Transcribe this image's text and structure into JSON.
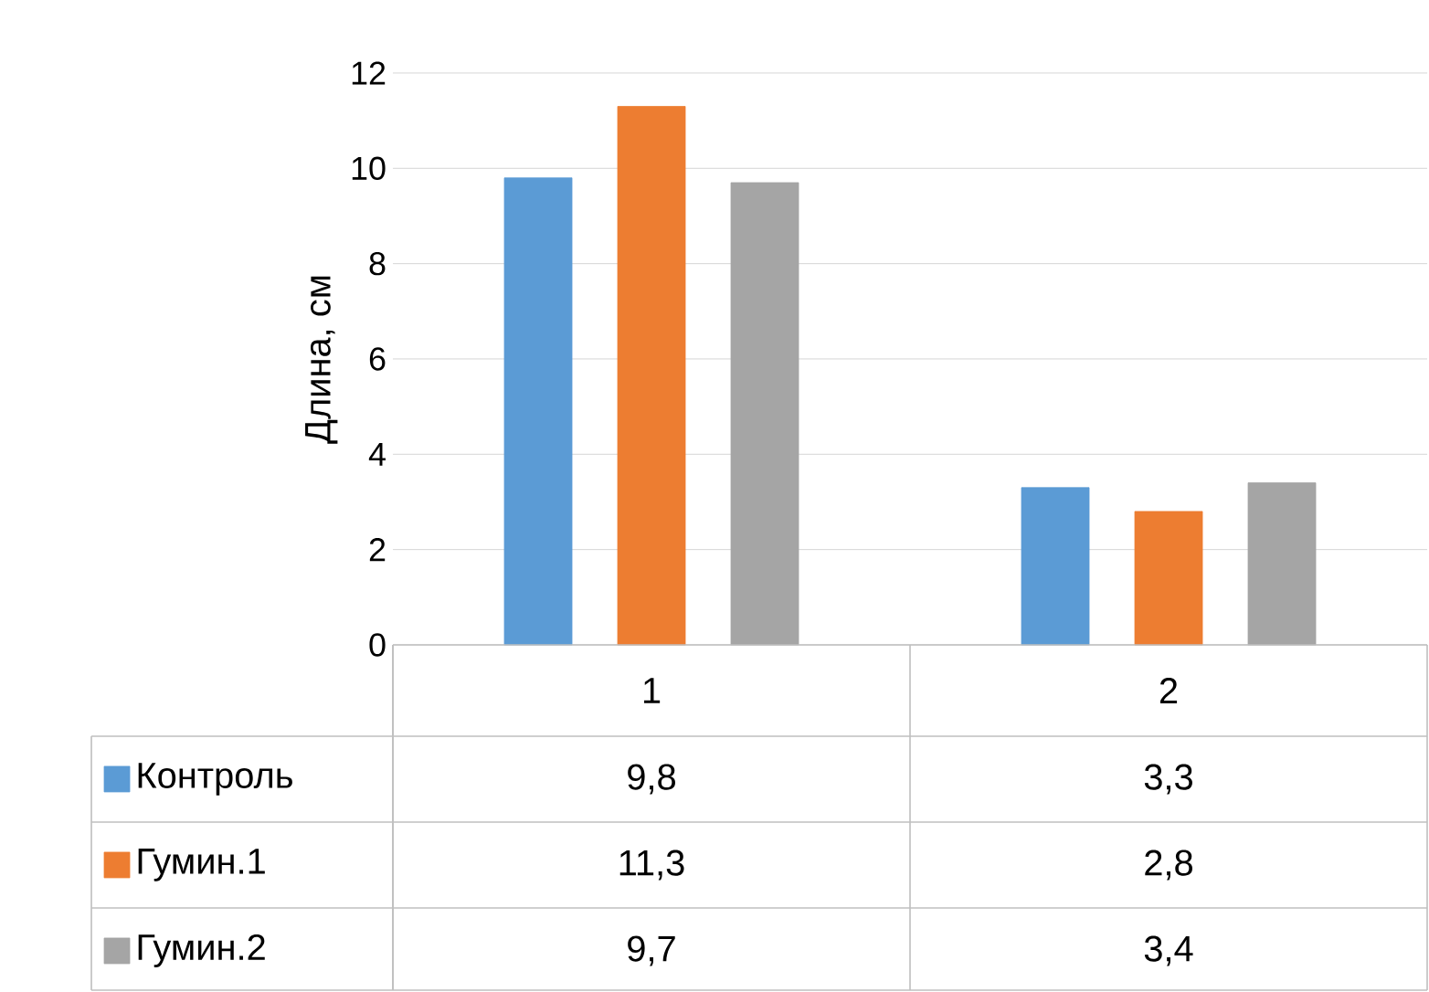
{
  "chart_data": {
    "type": "bar",
    "ylabel": "Длина, см",
    "categories": [
      "1",
      "2"
    ],
    "series": [
      {
        "name": "Контроль",
        "color": "#5b9bd5",
        "values": [
          9.8,
          3.3
        ],
        "value_labels": [
          "9,8",
          "3,3"
        ]
      },
      {
        "name": "Гумин.1",
        "color": "#ed7d31",
        "values": [
          11.3,
          2.8
        ],
        "value_labels": [
          "11,3",
          "2,8"
        ]
      },
      {
        "name": "Гумин.2",
        "color": "#a5a5a5",
        "values": [
          9.7,
          3.4
        ],
        "value_labels": [
          "9,7",
          "3,4"
        ]
      }
    ],
    "ylim": [
      0,
      12
    ],
    "yticks": [
      0,
      2,
      4,
      6,
      8,
      10,
      12
    ],
    "grid": "y",
    "legend": "bottom"
  }
}
